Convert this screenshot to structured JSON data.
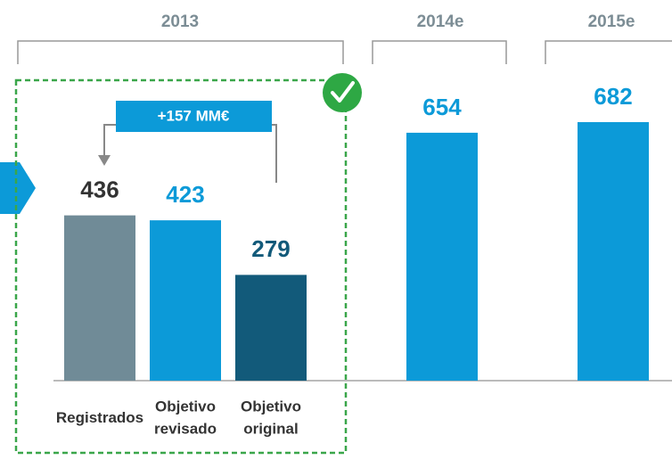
{
  "chart_data": {
    "type": "bar",
    "groups": [
      "2013",
      "2014e",
      "2015e"
    ],
    "categories": [
      "Registrados",
      "Objetivo revisado",
      "Objetivo original",
      null,
      null
    ],
    "values": [
      436,
      423,
      279,
      654,
      682
    ],
    "colors": [
      "#708b97",
      "#0c9ad8",
      "#125a7a",
      "#0c9ad8",
      "#0c9ad8"
    ],
    "label_colors": [
      "#333333",
      "#0c9ad8",
      "#125a7a",
      "#0c9ad8",
      "#0c9ad8"
    ],
    "annotation": "+157 MM€"
  }
}
